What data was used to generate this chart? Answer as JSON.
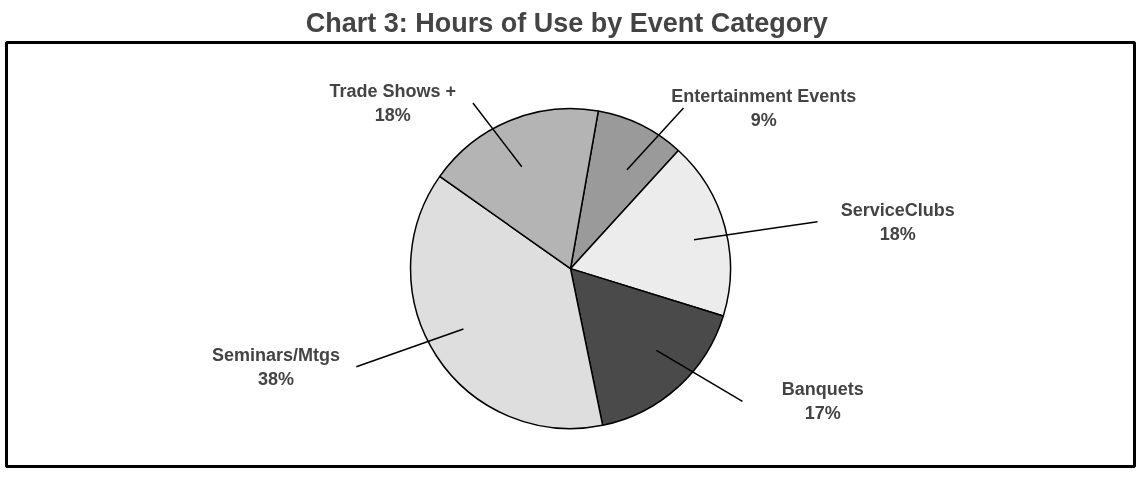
{
  "chart_data": {
    "type": "pie",
    "title": "Chart 3:  Hours of Use by Event Category",
    "categories": [
      "Entertainment Events",
      "ServiceClubs",
      "Banquets",
      "Seminars/Mtgs",
      "Trade Shows +"
    ],
    "values": [
      9,
      18,
      17,
      38,
      18
    ],
    "value_labels": [
      "9%",
      "18%",
      "17%",
      "38%",
      "18%"
    ],
    "colors": [
      "#9a9a9a",
      "#ececec",
      "#4a4a4a",
      "#dedede",
      "#b4b4b4"
    ]
  }
}
